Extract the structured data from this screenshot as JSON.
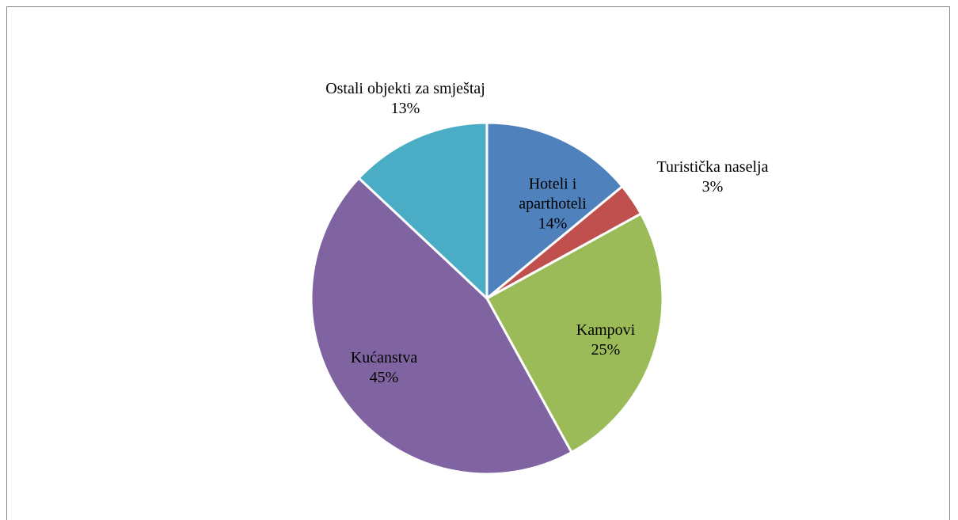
{
  "chart_data": {
    "type": "pie",
    "categories": [
      "Hoteli i aparthoteli",
      "Turistička naselja",
      "Kampovi",
      "Kućanstva",
      "Ostali objekti za smještaj"
    ],
    "values": [
      14,
      3,
      25,
      45,
      13
    ],
    "value_labels": [
      "14%",
      "3%",
      "25%",
      "45%",
      "13%"
    ],
    "colors": [
      "#4f81bd",
      "#c0504d",
      "#9bbb59",
      "#8064a2",
      "#4bacc6"
    ]
  }
}
